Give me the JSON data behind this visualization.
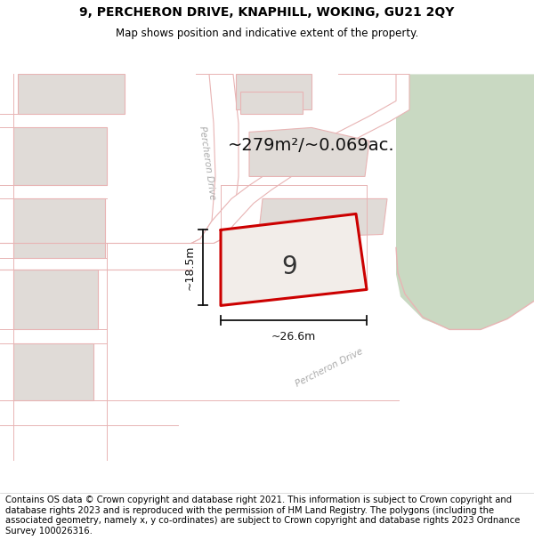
{
  "title_line1": "9, PERCHERON DRIVE, KNAPHILL, WOKING, GU21 2QY",
  "title_line2": "Map shows position and indicative extent of the property.",
  "footer_text": "Contains OS data © Crown copyright and database right 2021. This information is subject to Crown copyright and database rights 2023 and is reproduced with the permission of HM Land Registry. The polygons (including the associated geometry, namely x, y co-ordinates) are subject to Crown copyright and database rights 2023 Ordnance Survey 100026316.",
  "map_bg": "#f2ede9",
  "road_fill": "#ffffff",
  "road_edge": "#e8b4b4",
  "block_fill": "#e0dbd7",
  "block_edge": "#e8b4b4",
  "green_fill": "#c9d9c2",
  "plot_color": "#cc0000",
  "plot_label": "9",
  "area_text": "~279m²/~0.069ac.",
  "dim_v": "~18.5m",
  "dim_h": "~26.6m",
  "title_fs": 10,
  "subtitle_fs": 8.5,
  "footer_fs": 7.2,
  "area_fs": 14,
  "label_fs": 20,
  "dim_fs": 9,
  "road_label_fs": 7.5,
  "road_label_color": "#aaaaaa",
  "annotation_color": "#111111"
}
